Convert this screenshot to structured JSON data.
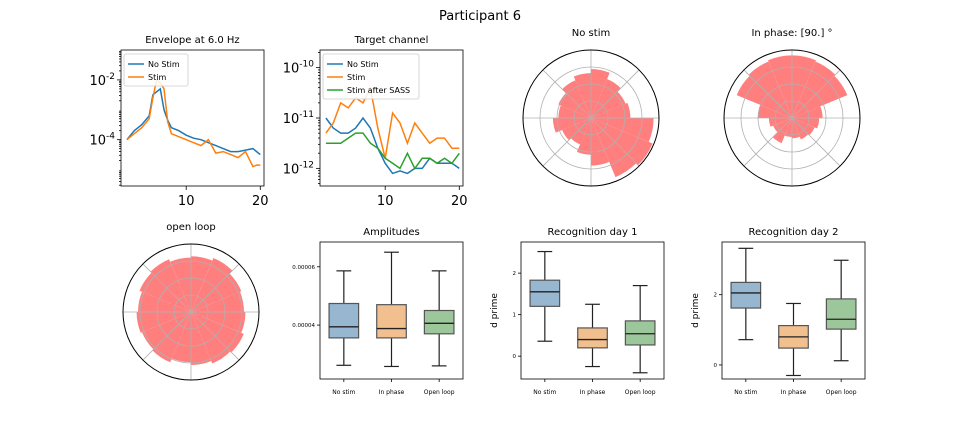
{
  "figure": {
    "suptitle": "Participant 6"
  },
  "colors": {
    "blue": "#1f77b4",
    "orange": "#ff7f0e",
    "green": "#2ca02c",
    "red": "#ff7f7f",
    "box_blue": "#97b7d1",
    "box_orange": "#f2c08f",
    "box_green": "#9cc79a"
  },
  "chart_data": [
    {
      "id": "envelope",
      "type": "line",
      "title": "Envelope at 6.0 Hz",
      "yscale": "log",
      "xlim": [
        1.2,
        20.5
      ],
      "ylim_log10": [
        -5.55,
        -1.0
      ],
      "xticks": [
        10,
        20
      ],
      "yticks": [
        {
          "v": -2,
          "label": "10^-2"
        },
        {
          "v": -4,
          "label": "10^-4"
        }
      ],
      "legend": "upper-left",
      "series": [
        {
          "name": "No Stim",
          "color": "blue",
          "x": [
            2,
            3,
            4,
            5,
            5.5,
            6,
            6.5,
            7,
            7.5,
            8,
            9,
            10,
            11,
            12,
            13,
            14,
            15,
            16,
            17,
            18,
            19,
            20
          ],
          "y": [
            -4.0,
            -3.7,
            -3.5,
            -3.2,
            -2.5,
            -2.4,
            -2.3,
            -3.0,
            -3.35,
            -3.6,
            -3.7,
            -3.85,
            -3.95,
            -4.0,
            -4.1,
            -4.2,
            -4.3,
            -4.4,
            -4.4,
            -4.35,
            -4.3,
            -4.5
          ]
        },
        {
          "name": "Stim",
          "color": "orange",
          "x": [
            2,
            3,
            4,
            5,
            5.5,
            6,
            6.5,
            7,
            7.5,
            8,
            9,
            10,
            11,
            12,
            13,
            14,
            15,
            16,
            17,
            18,
            19,
            19.5,
            20
          ],
          "y": [
            -4.0,
            -3.8,
            -3.6,
            -3.3,
            -2.6,
            -2.0,
            -2.1,
            -2.3,
            -3.4,
            -3.8,
            -3.9,
            -4.0,
            -4.1,
            -4.2,
            -4.0,
            -4.45,
            -4.4,
            -4.5,
            -4.6,
            -4.4,
            -4.9,
            -4.85,
            -4.85
          ]
        }
      ]
    },
    {
      "id": "target",
      "type": "line",
      "title": "Target channel",
      "yscale": "log",
      "xlim": [
        1.2,
        20.5
      ],
      "ylim_log10": [
        -12.35,
        -9.65
      ],
      "xticks": [
        10,
        20
      ],
      "yticks": [
        {
          "v": -10,
          "label": "10^-10"
        },
        {
          "v": -11,
          "label": "10^-11"
        },
        {
          "v": -12,
          "label": "10^-12"
        }
      ],
      "legend": "upper-left",
      "series": [
        {
          "name": "No Stim",
          "color": "blue",
          "x": [
            2,
            3,
            4,
            5,
            6,
            7,
            8,
            9,
            10,
            11,
            12,
            13,
            14,
            15,
            16,
            17,
            18,
            19,
            20
          ],
          "y": [
            -11.0,
            -11.2,
            -11.3,
            -11.3,
            -11.2,
            -11.0,
            -11.2,
            -11.6,
            -11.9,
            -12.1,
            -12.05,
            -12.1,
            -12.0,
            -12.0,
            -11.8,
            -11.9,
            -11.9,
            -11.9,
            -12.0
          ]
        },
        {
          "name": "Stim",
          "color": "orange",
          "x": [
            2,
            3,
            4,
            5,
            6,
            7,
            8,
            9,
            10,
            11,
            12,
            13,
            14,
            15,
            16,
            17,
            18,
            19,
            20
          ],
          "y": [
            -11.3,
            -11.1,
            -10.7,
            -10.8,
            -10.6,
            -10.7,
            -10.4,
            -11.2,
            -11.8,
            -10.9,
            -11.1,
            -11.5,
            -11.1,
            -11.3,
            -11.5,
            -11.4,
            -11.4,
            -11.6,
            -11.6
          ]
        },
        {
          "name": "Stim after SASS",
          "color": "green",
          "x": [
            2,
            3,
            4,
            5,
            6,
            7,
            8,
            9,
            10,
            11,
            12,
            13,
            14,
            15,
            16,
            17,
            18,
            19,
            20
          ],
          "y": [
            -11.5,
            -11.5,
            -11.5,
            -11.4,
            -11.3,
            -11.3,
            -11.5,
            -11.6,
            -11.8,
            -11.9,
            -12.0,
            -11.7,
            -12.0,
            -11.8,
            -11.8,
            -11.9,
            -11.8,
            -11.9,
            -11.7
          ]
        }
      ]
    },
    {
      "id": "polar_nostim",
      "type": "polar-histogram",
      "title": "No stim",
      "rmax": 1.0,
      "radii": [
        0.58,
        0.55,
        0.62,
        0.72,
        0.66,
        0.6,
        0.52,
        0.48,
        0.56,
        0.46,
        0.42,
        0.54,
        0.7,
        0.94,
        0.98,
        0.92
      ]
    },
    {
      "id": "polar_inphase",
      "type": "polar-histogram",
      "title": "In phase: [90.] °",
      "rmax": 1.0,
      "radii": [
        0.45,
        0.88,
        0.9,
        0.92,
        0.92,
        0.9,
        0.88,
        0.5,
        0.34,
        0.3,
        0.4,
        0.28,
        0.3,
        0.34,
        0.36,
        0.4
      ]
    },
    {
      "id": "polar_openloop",
      "type": "polar-histogram",
      "title": "open loop",
      "rmax": 1.0,
      "radii": [
        0.78,
        0.8,
        0.86,
        0.82,
        0.8,
        0.84,
        0.82,
        0.78,
        0.8,
        0.78,
        0.8,
        0.74,
        0.78,
        0.82,
        0.84,
        0.8
      ]
    },
    {
      "id": "amplitudes",
      "type": "box",
      "title": "Amplitudes",
      "ylabel": "",
      "ylim": [
        2.15e-05,
        6.85e-05
      ],
      "yticks": [
        {
          "v": 4e-05,
          "label": "0.00004"
        },
        {
          "v": 6e-05,
          "label": "0.00006"
        }
      ],
      "categories": [
        "No stim",
        "In phase",
        "Open loop"
      ],
      "boxes": [
        {
          "wl": 2.62e-05,
          "q1": 3.56e-05,
          "med": 3.94e-05,
          "q3": 4.74e-05,
          "wh": 5.86e-05,
          "color": "box_blue"
        },
        {
          "wl": 2.58e-05,
          "q1": 3.56e-05,
          "med": 3.88e-05,
          "q3": 4.7e-05,
          "wh": 6.5e-05,
          "color": "box_orange"
        },
        {
          "wl": 2.6e-05,
          "q1": 3.7e-05,
          "med": 4.06e-05,
          "q3": 4.5e-05,
          "wh": 5.86e-05,
          "color": "box_green"
        }
      ]
    },
    {
      "id": "recog1",
      "type": "box",
      "title": "Recognition day 1",
      "ylabel": "d prime",
      "ylim": [
        -0.55,
        2.75
      ],
      "yticks": [
        {
          "v": 0,
          "label": "0"
        },
        {
          "v": 1,
          "label": "1"
        },
        {
          "v": 2,
          "label": "2"
        }
      ],
      "categories": [
        "No stim",
        "In phase",
        "Open loop"
      ],
      "boxes": [
        {
          "wl": 0.36,
          "q1": 1.2,
          "med": 1.55,
          "q3": 1.83,
          "wh": 2.52,
          "color": "box_blue"
        },
        {
          "wl": -0.25,
          "q1": 0.2,
          "med": 0.4,
          "q3": 0.68,
          "wh": 1.25,
          "color": "box_orange"
        },
        {
          "wl": -0.4,
          "q1": 0.27,
          "med": 0.54,
          "q3": 0.85,
          "wh": 1.7,
          "color": "box_green"
        }
      ]
    },
    {
      "id": "recog2",
      "type": "box",
      "title": "Recognition day 2",
      "ylabel": "d prime",
      "ylim": [
        -0.4,
        3.5
      ],
      "yticks": [
        {
          "v": 0,
          "label": "0"
        },
        {
          "v": 2,
          "label": "2"
        }
      ],
      "categories": [
        "No stim",
        "In phase",
        "Open loop"
      ],
      "boxes": [
        {
          "wl": 0.72,
          "q1": 1.62,
          "med": 2.05,
          "q3": 2.35,
          "wh": 3.32,
          "color": "box_blue"
        },
        {
          "wl": -0.3,
          "q1": 0.48,
          "med": 0.8,
          "q3": 1.12,
          "wh": 1.75,
          "color": "box_orange"
        },
        {
          "wl": 0.12,
          "q1": 1.02,
          "med": 1.3,
          "q3": 1.88,
          "wh": 2.98,
          "color": "box_green"
        }
      ]
    }
  ]
}
